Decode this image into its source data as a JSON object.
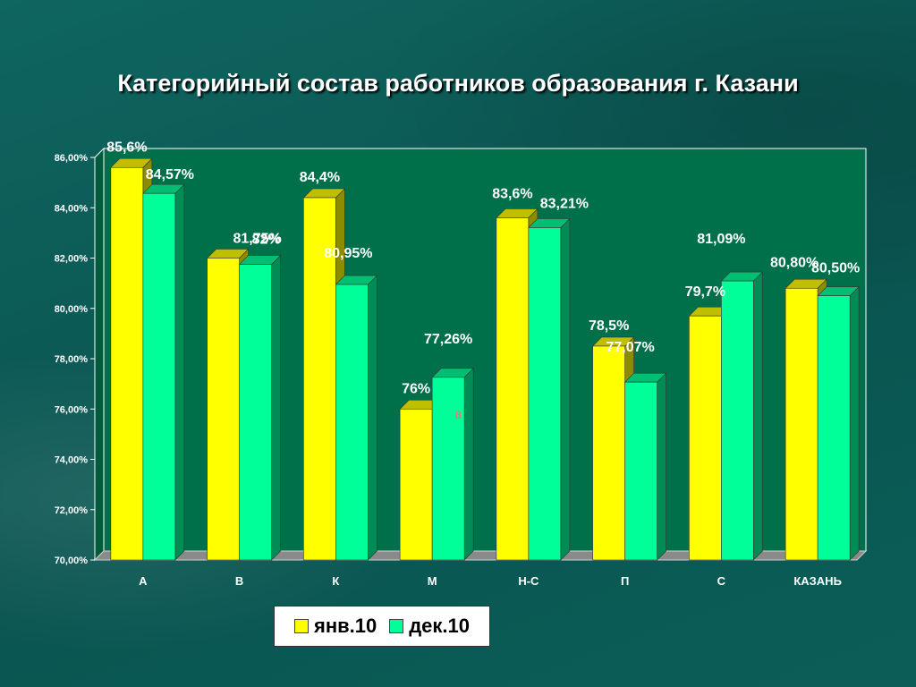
{
  "title": "Категорийный состав работников образования г. Казани",
  "colors": {
    "jan": "#ffff00",
    "dec": "#00ff99",
    "plot_bg": "#00704a"
  },
  "stray_mark": "8",
  "chart_data": {
    "type": "bar",
    "title": "Категорийный состав работников образования г. Казани",
    "categories": [
      "А",
      "В",
      "К",
      "М",
      "Н-С",
      "П",
      "С",
      "КАЗАНЬ"
    ],
    "series": [
      {
        "name": "янв.10",
        "values": [
          85.6,
          82,
          84.4,
          76,
          83.6,
          78.5,
          79.7,
          80.8
        ],
        "labels": [
          "85,6%",
          "82%",
          "84,4%",
          "76%",
          "83,6%",
          "78,5%",
          "79,7%",
          "80,80%"
        ]
      },
      {
        "name": "дек.10",
        "values": [
          84.57,
          81.75,
          80.95,
          77.26,
          83.21,
          77.07,
          81.09,
          80.5
        ],
        "labels": [
          "84,57%",
          "81,75%",
          "80,95%",
          "77,26%",
          "83,21%",
          "77,07%",
          "81,09%",
          "80,50%"
        ]
      }
    ],
    "ylim": [
      70,
      86
    ],
    "yticks": [
      70,
      72,
      74,
      76,
      78,
      80,
      82,
      84,
      86
    ],
    "ytick_labels": [
      "70,00%",
      "72,00%",
      "74,00%",
      "76,00%",
      "78,00%",
      "80,00%",
      "82,00%",
      "84,00%",
      "86,00%"
    ],
    "xlabel": "",
    "ylabel": "",
    "legend_position": "bottom",
    "grid": false,
    "style": "3d-clustered-bar"
  }
}
